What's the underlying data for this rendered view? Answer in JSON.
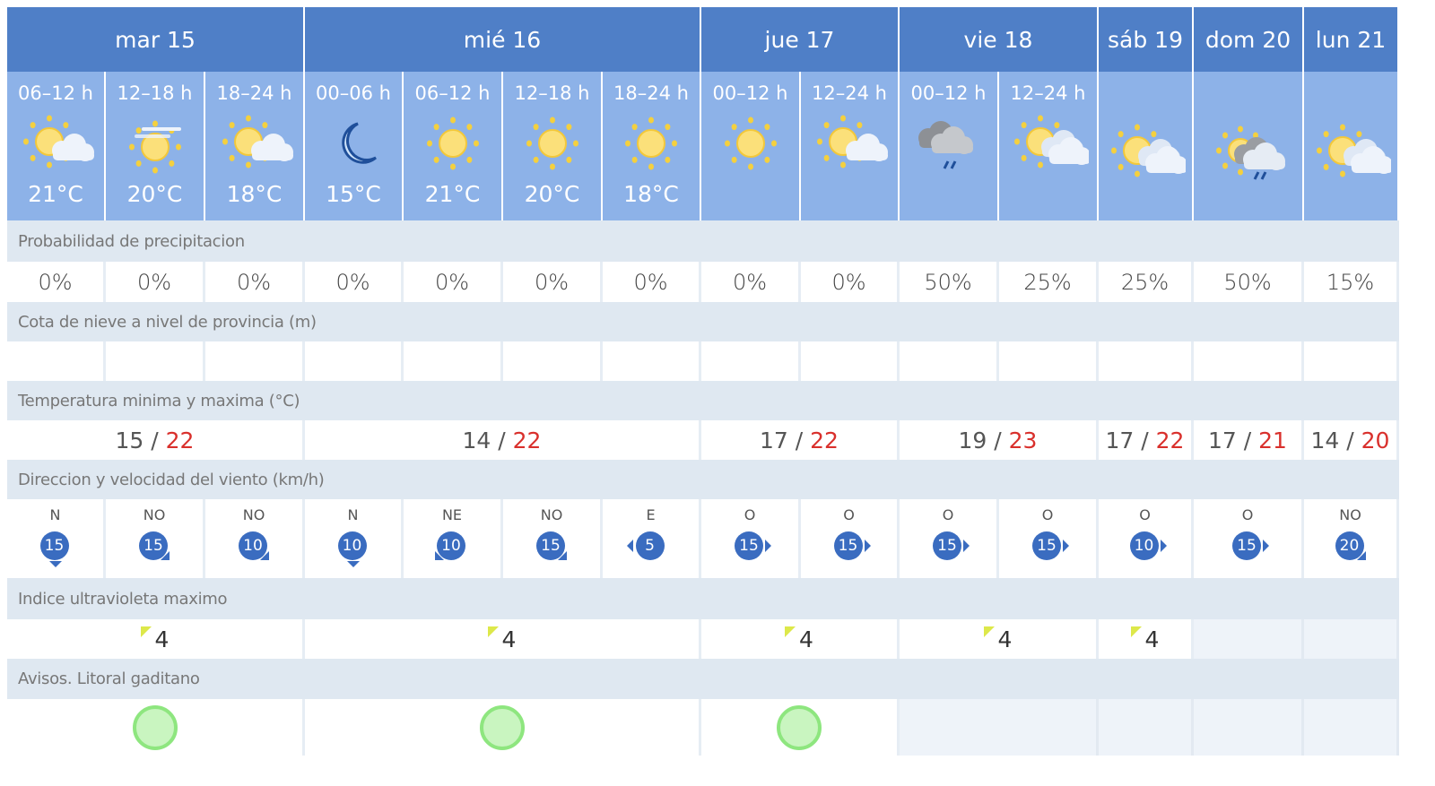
{
  "days": [
    {
      "label": "mar 15",
      "span": 3,
      "temp_min": "15",
      "temp_max": "22",
      "uv": "4",
      "aviso": "green"
    },
    {
      "label": "mié 16",
      "span": 4,
      "temp_min": "14",
      "temp_max": "22",
      "uv": "4",
      "aviso": "green"
    },
    {
      "label": "jue 17",
      "span": 2,
      "temp_min": "17",
      "temp_max": "22",
      "uv": "4",
      "aviso": "green"
    },
    {
      "label": "vie 18",
      "span": 2,
      "temp_min": "19",
      "temp_max": "23",
      "uv": "4",
      "aviso": null
    },
    {
      "label": "sáb 19",
      "span": 1,
      "temp_min": "17",
      "temp_max": "22",
      "uv": "4",
      "aviso": null
    },
    {
      "label": "dom 20",
      "span": 1,
      "temp_min": "17",
      "temp_max": "21",
      "uv": null,
      "aviso": null
    },
    {
      "label": "lun 21",
      "span": 1,
      "temp_min": "14",
      "temp_max": "20",
      "uv": null,
      "aviso": null
    }
  ],
  "periods": [
    {
      "label": "06–12 h",
      "icon": "sun-cloud",
      "temp": "21°C",
      "precip": "0%",
      "wind_dir": "N",
      "wind_speed": "15"
    },
    {
      "label": "12–18 h",
      "icon": "sun-haze",
      "temp": "20°C",
      "precip": "0%",
      "wind_dir": "NO",
      "wind_speed": "15"
    },
    {
      "label": "18–24 h",
      "icon": "sun-cloud",
      "temp": "18°C",
      "precip": "0%",
      "wind_dir": "NO",
      "wind_speed": "10"
    },
    {
      "label": "00–06 h",
      "icon": "moon",
      "temp": "15°C",
      "precip": "0%",
      "wind_dir": "N",
      "wind_speed": "10"
    },
    {
      "label": "06–12 h",
      "icon": "sun",
      "temp": "21°C",
      "precip": "0%",
      "wind_dir": "NE",
      "wind_speed": "10"
    },
    {
      "label": "12–18 h",
      "icon": "sun",
      "temp": "20°C",
      "precip": "0%",
      "wind_dir": "NO",
      "wind_speed": "15"
    },
    {
      "label": "18–24 h",
      "icon": "sun",
      "temp": "18°C",
      "precip": "0%",
      "wind_dir": "E",
      "wind_speed": "5"
    },
    {
      "label": "00–12 h",
      "icon": "sun",
      "temp": null,
      "precip": "0%",
      "wind_dir": "O",
      "wind_speed": "15"
    },
    {
      "label": "12–24 h",
      "icon": "sun-cloud",
      "temp": null,
      "precip": "0%",
      "wind_dir": "O",
      "wind_speed": "15"
    },
    {
      "label": "00–12 h",
      "icon": "cloud-rain",
      "temp": null,
      "precip": "50%",
      "wind_dir": "O",
      "wind_speed": "15"
    },
    {
      "label": "12–24 h",
      "icon": "sun-clouds",
      "temp": null,
      "precip": "25%",
      "wind_dir": "O",
      "wind_speed": "15"
    },
    {
      "label": null,
      "icon": "sun-clouds",
      "temp": null,
      "precip": "25%",
      "wind_dir": "O",
      "wind_speed": "10"
    },
    {
      "label": null,
      "icon": "sun-cloud-rain",
      "temp": null,
      "precip": "50%",
      "wind_dir": "O",
      "wind_speed": "15"
    },
    {
      "label": null,
      "icon": "sun-clouds",
      "temp": null,
      "precip": "15%",
      "wind_dir": "NO",
      "wind_speed": "20"
    }
  ],
  "labels": {
    "precip": "Probabilidad de precipitacion",
    "snow": "Cota de nieve a nivel de provincia (m)",
    "temp": "Temperatura minima y maxima (°C)",
    "wind": "Direccion y velocidad del viento (km/h)",
    "uv": "Indice ultravioleta maximo",
    "avisos": "Avisos. Litoral gaditano"
  },
  "temp_separator": " / ",
  "colors": {
    "header": "#4f7fc7",
    "period": "#8db2e8",
    "label_bg": "#dfe8f1",
    "max_temp": "#d9302c",
    "wind_badge": "#3a6cc0",
    "aviso_green": "#8ee67f",
    "uv_marker": "#dde84a"
  }
}
